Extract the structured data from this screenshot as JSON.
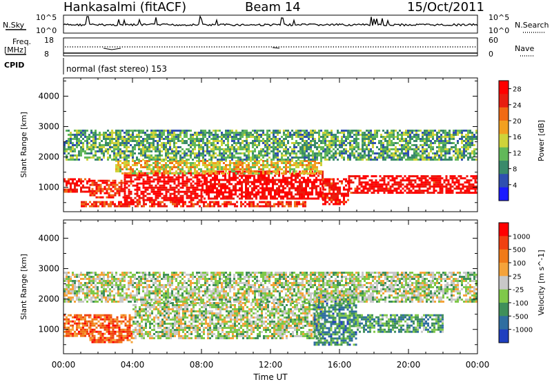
{
  "header": {
    "station": "Hankasalmi (fitACF)",
    "beam": "Beam 14",
    "date": "15/Oct/2011"
  },
  "top_panels": {
    "nsky_label": "N.Sky",
    "nsky_ticks": [
      "10^5",
      "10^0"
    ],
    "nsearch_label": "N.Search",
    "nsearch_ticks": [
      "10^5",
      "10^0"
    ],
    "freq_label": "Freq.",
    "freq_unit": "[MHz]",
    "freq_ticks": [
      "18",
      "8"
    ],
    "nave_label": "Nave",
    "nave_ticks": [
      "60",
      "0"
    ],
    "cpid_label": "CPID",
    "cpid_text": "normal (fast stereo) 153"
  },
  "chart_data": [
    {
      "type": "heatmap",
      "name": "power-panel",
      "ylabel": "Slant Range [km]",
      "xlabel": "",
      "yticks": [
        "1000",
        "2000",
        "3000",
        "4000"
      ],
      "xticks": [
        "00:00",
        "04:00",
        "08:00",
        "12:00",
        "16:00",
        "20:00",
        "00:00"
      ],
      "ylim": [
        200,
        4600
      ],
      "xlim_hours": [
        0,
        24
      ],
      "colorbar": {
        "label": "Power [dB]",
        "ticks": [
          "4",
          "8",
          "12",
          "16",
          "20",
          "24",
          "28"
        ],
        "range": [
          0,
          30
        ],
        "colors": [
          "#1a1aff",
          "#2f4fb0",
          "#3a8a6a",
          "#62b85a",
          "#cfd33a",
          "#f2a020",
          "#f06a14",
          "#e81e10",
          "#ff0000"
        ]
      },
      "bands": [
        {
          "t0": 0.0,
          "t1": 1.5,
          "r0": 850,
          "r1": 1300,
          "level": 0.9
        },
        {
          "t0": 1.5,
          "t1": 3.5,
          "r0": 700,
          "r1": 1250,
          "level": 0.85
        },
        {
          "t0": 3.5,
          "t1": 8.0,
          "r0": 600,
          "r1": 1500,
          "level": 0.95
        },
        {
          "t0": 8.0,
          "t1": 15.0,
          "r0": 650,
          "r1": 1550,
          "level": 0.95
        },
        {
          "t0": 15.0,
          "t1": 16.5,
          "r0": 450,
          "r1": 1300,
          "level": 0.9
        },
        {
          "t0": 16.5,
          "t1": 24.0,
          "r0": 850,
          "r1": 1400,
          "level": 0.95
        },
        {
          "t0": 3.0,
          "t1": 15.0,
          "r0": 1450,
          "r1": 1900,
          "level": 0.55
        },
        {
          "t0": 0.0,
          "t1": 24.0,
          "r0": 1900,
          "r1": 2900,
          "level": 0.35
        },
        {
          "t0": 1.0,
          "t1": 14.0,
          "r0": 350,
          "r1": 550,
          "level": 0.85
        }
      ]
    },
    {
      "type": "heatmap",
      "name": "velocity-panel",
      "ylabel": "Slant Range [km]",
      "xlabel": "Time UT",
      "yticks": [
        "1000",
        "2000",
        "3000",
        "4000"
      ],
      "xticks": [
        "00:00",
        "04:00",
        "08:00",
        "12:00",
        "16:00",
        "20:00",
        "00:00"
      ],
      "ylim": [
        200,
        4600
      ],
      "xlim_hours": [
        0,
        24
      ],
      "colorbar": {
        "label": "Velocity [m s^-1]",
        "ticks": [
          "1000",
          "500",
          "100",
          "25",
          "-25",
          "-100",
          "-500",
          "-1000"
        ],
        "colors": [
          "#1f3fbf",
          "#2f6ea0",
          "#3f8f5a",
          "#7fc84a",
          "#c8c8c8",
          "#f5a33a",
          "#f07a18",
          "#f04010",
          "#ff0000"
        ]
      },
      "bands": [
        {
          "t0": 0.0,
          "t1": 1.5,
          "r0": 800,
          "r1": 1500,
          "level": 0.75
        },
        {
          "t0": 1.5,
          "t1": 4.0,
          "r0": 600,
          "r1": 1500,
          "level": 0.78
        },
        {
          "t0": 4.0,
          "t1": 15.0,
          "r0": 700,
          "r1": 1900,
          "level": 0.45
        },
        {
          "t0": 14.5,
          "t1": 17.0,
          "r0": 500,
          "r1": 2300,
          "level": 0.25
        },
        {
          "t0": 17.0,
          "t1": 22.0,
          "r0": 900,
          "r1": 1500,
          "level": 0.3
        },
        {
          "t0": 0.0,
          "t1": 24.0,
          "r0": 1900,
          "r1": 2900,
          "level": 0.45
        }
      ]
    }
  ],
  "colors": {
    "frame": "#000000",
    "background": "#ffffff"
  }
}
